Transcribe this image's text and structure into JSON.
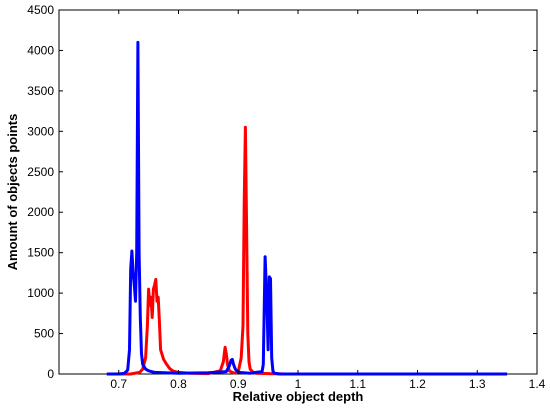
{
  "chart_data": {
    "type": "line",
    "title": "",
    "xlabel": "Relative object depth",
    "ylabel": "Amount of objects points",
    "xlim": [
      0.6,
      1.4
    ],
    "ylim": [
      0,
      4500
    ],
    "xticks": [
      "0.7",
      "0.8",
      "0.9",
      "1",
      "1.1",
      "1.2",
      "1.3",
      "1.4"
    ],
    "yticks": [
      "0",
      "500",
      "1000",
      "1500",
      "2000",
      "2500",
      "3000",
      "3500",
      "4000",
      "4500"
    ],
    "grid": false,
    "legend": "none",
    "series": [
      {
        "color": "#ff0000",
        "x": [
          0.68,
          0.72,
          0.735,
          0.74,
          0.745,
          0.748,
          0.75,
          0.752,
          0.754,
          0.756,
          0.758,
          0.76,
          0.762,
          0.764,
          0.766,
          0.768,
          0.77,
          0.775,
          0.78,
          0.785,
          0.79,
          0.8,
          0.82,
          0.85,
          0.87,
          0.875,
          0.878,
          0.88,
          0.882,
          0.885,
          0.89,
          0.895,
          0.9,
          0.905,
          0.908,
          0.91,
          0.912,
          0.914,
          0.916,
          0.918,
          0.92,
          0.925,
          0.93,
          0.95,
          0.98,
          1.0
        ],
        "y": [
          0,
          0,
          20,
          60,
          200,
          600,
          1050,
          850,
          950,
          700,
          1050,
          1100,
          1170,
          900,
          950,
          650,
          300,
          180,
          120,
          70,
          40,
          20,
          10,
          5,
          40,
          150,
          330,
          250,
          120,
          40,
          20,
          10,
          30,
          200,
          600,
          2100,
          3050,
          1800,
          500,
          150,
          60,
          20,
          10,
          5,
          0,
          0
        ]
      },
      {
        "color": "#0000ff",
        "x": [
          0.68,
          0.7,
          0.71,
          0.715,
          0.718,
          0.72,
          0.722,
          0.724,
          0.726,
          0.728,
          0.73,
          0.732,
          0.734,
          0.736,
          0.738,
          0.74,
          0.745,
          0.75,
          0.76,
          0.8,
          0.85,
          0.88,
          0.885,
          0.888,
          0.89,
          0.892,
          0.895,
          0.9,
          0.92,
          0.94,
          0.942,
          0.945,
          0.948,
          0.95,
          0.952,
          0.954,
          0.956,
          0.958,
          0.96,
          0.97,
          1.0,
          1.2,
          1.35
        ],
        "y": [
          0,
          0,
          10,
          50,
          300,
          1300,
          1520,
          1250,
          1100,
          900,
          1500,
          4100,
          1500,
          700,
          250,
          120,
          60,
          40,
          20,
          10,
          15,
          30,
          100,
          170,
          180,
          120,
          60,
          20,
          10,
          30,
          120,
          1450,
          900,
          300,
          1200,
          1180,
          200,
          40,
          10,
          0,
          0,
          0,
          0
        ]
      }
    ]
  }
}
